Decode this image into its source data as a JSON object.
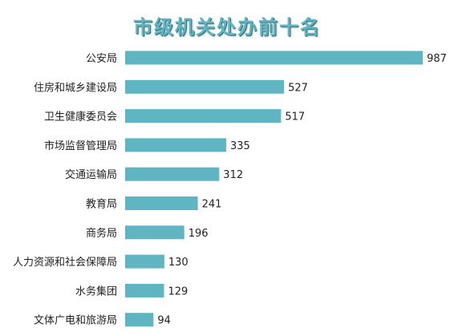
{
  "chart_data": {
    "type": "bar",
    "orientation": "horizontal",
    "title": "市级机关处办前十名",
    "categories": [
      "公安局",
      "住房和城乡建设局",
      "卫生健康委员会",
      "市场监督管理局",
      "交通运输局",
      "教育局",
      "商务局",
      "人力资源和社会保障局",
      "水务集团",
      "文体广电和旅游局"
    ],
    "values": [
      987,
      527,
      517,
      335,
      312,
      241,
      196,
      130,
      129,
      94
    ],
    "data_labels": [
      "987",
      "527",
      "517",
      "335",
      "312",
      "241",
      "196",
      "130",
      "129",
      "94"
    ],
    "xlim": [
      0,
      1000
    ],
    "grid": false,
    "legend": "none",
    "bar_color": "#5fb6c2"
  }
}
